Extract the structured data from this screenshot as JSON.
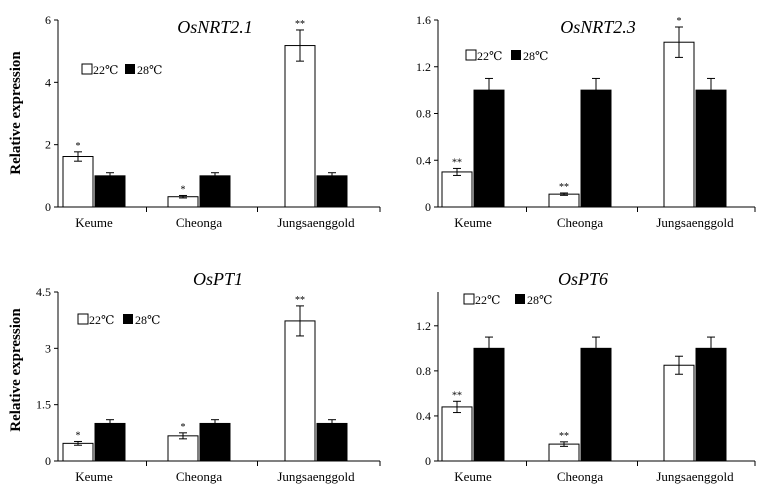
{
  "y_axis_label": "Relative expression",
  "legend": {
    "series_22": "22℃",
    "series_28": "28℃"
  },
  "colors": {
    "series_22": "#ffffff",
    "series_28": "#000000",
    "axis": "#000000"
  },
  "chart_data": [
    {
      "type": "bar",
      "title": "OsNRT2.1",
      "ylabel": "Relative expression",
      "ylim": [
        0,
        6
      ],
      "yticks": [
        "0",
        "2",
        "4",
        "6"
      ],
      "ytick_values": [
        0,
        2,
        4,
        6
      ],
      "categories": [
        "Keume",
        "Cheonga",
        "Jungsaenggold"
      ],
      "series": [
        {
          "name": "22℃",
          "values": [
            1.62,
            0.33,
            5.18
          ],
          "errors": [
            0.15,
            0.04,
            0.5
          ],
          "significance": [
            "*",
            "*",
            "**"
          ]
        },
        {
          "name": "28℃",
          "values": [
            1.0,
            1.0,
            1.0
          ],
          "errors": [
            0.1,
            0.1,
            0.1
          ],
          "significance": [
            "",
            "",
            ""
          ]
        }
      ]
    },
    {
      "type": "bar",
      "title": "OsNRT2.3",
      "ylabel": "",
      "ylim": [
        0,
        1.6
      ],
      "yticks": [
        "0",
        "0.4",
        "0.8",
        "1.2",
        "1.6"
      ],
      "ytick_values": [
        0,
        0.4,
        0.8,
        1.2,
        1.6
      ],
      "categories": [
        "Keume",
        "Cheonga",
        "Jungsaenggold"
      ],
      "series": [
        {
          "name": "22℃",
          "values": [
            0.3,
            0.11,
            1.41
          ],
          "errors": [
            0.03,
            0.01,
            0.13
          ],
          "significance": [
            "**",
            "**",
            "*"
          ]
        },
        {
          "name": "28℃",
          "values": [
            1.0,
            1.0,
            1.0
          ],
          "errors": [
            0.1,
            0.1,
            0.1
          ],
          "significance": [
            "",
            "",
            ""
          ]
        }
      ]
    },
    {
      "type": "bar",
      "title": "OsPT1",
      "ylabel": "Relative expression",
      "ylim": [
        0,
        4.5
      ],
      "yticks": [
        "0",
        "1.5",
        "3",
        "4.5"
      ],
      "ytick_values": [
        0,
        1.5,
        3,
        4.5
      ],
      "categories": [
        "Keume",
        "Cheonga",
        "Jungsaenggold"
      ],
      "series": [
        {
          "name": "22℃",
          "values": [
            0.47,
            0.67,
            3.73
          ],
          "errors": [
            0.05,
            0.08,
            0.4
          ],
          "significance": [
            "*",
            "*",
            "**"
          ]
        },
        {
          "name": "28℃",
          "values": [
            1.0,
            1.0,
            1.0
          ],
          "errors": [
            0.1,
            0.1,
            0.1
          ],
          "significance": [
            "",
            "",
            ""
          ]
        }
      ]
    },
    {
      "type": "bar",
      "title": "OsPT6",
      "ylabel": "",
      "ylim": [
        0,
        1.5
      ],
      "yticks": [
        "0",
        "0.4",
        "0.8",
        "1.2"
      ],
      "ytick_values": [
        0,
        0.4,
        0.8,
        1.2
      ],
      "categories": [
        "Keume",
        "Cheonga",
        "Jungsaenggold"
      ],
      "series": [
        {
          "name": "22℃",
          "values": [
            0.48,
            0.15,
            0.85
          ],
          "errors": [
            0.05,
            0.02,
            0.08
          ],
          "significance": [
            "**",
            "**",
            ""
          ]
        },
        {
          "name": "28℃",
          "values": [
            1.0,
            1.0,
            1.0
          ],
          "errors": [
            0.1,
            0.1,
            0.1
          ],
          "significance": [
            "",
            "",
            ""
          ]
        }
      ]
    }
  ]
}
